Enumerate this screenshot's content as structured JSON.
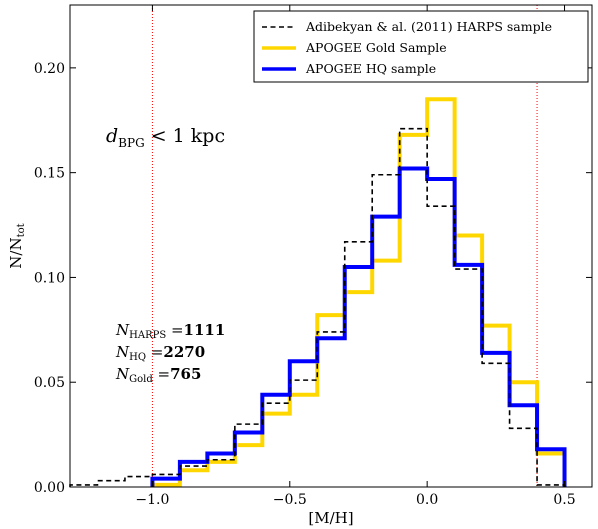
{
  "chart_data": {
    "type": "step",
    "xlabel": "[M/H]",
    "ylabel_main": "N/N",
    "ylabel_sub": "tot",
    "xlim": [
      -1.3,
      0.6
    ],
    "ylim": [
      0.0,
      0.23
    ],
    "grid": false,
    "legend_position": "top-right",
    "x_ticks": [
      {
        "value": -1.0,
        "label": "−1.0"
      },
      {
        "value": -0.5,
        "label": "−0.5"
      },
      {
        "value": 0.0,
        "label": "0.0"
      },
      {
        "value": 0.5,
        "label": "0.5"
      }
    ],
    "y_ticks": [
      {
        "value": 0.0,
        "label": "0.00"
      },
      {
        "value": 0.05,
        "label": "0.05"
      },
      {
        "value": 0.1,
        "label": "0.10"
      },
      {
        "value": 0.15,
        "label": "0.15"
      },
      {
        "value": 0.2,
        "label": "0.20"
      }
    ],
    "vlines": [
      -1.0,
      0.4
    ],
    "vline_color": "#ff0000",
    "series": [
      {
        "name": "Adibekyan & al. (2011) HARPS sample",
        "color": "#000000",
        "style": "dashed",
        "edges": [
          -1.3,
          -1.2,
          -1.1,
          -1.0,
          -0.9,
          -0.8,
          -0.7,
          -0.6,
          -0.5,
          -0.4,
          -0.3,
          -0.2,
          -0.1,
          0.0,
          0.1,
          0.2,
          0.3,
          0.4,
          0.5
        ],
        "values": [
          0.001,
          0.003,
          0.005,
          0.006,
          0.01,
          0.013,
          0.03,
          0.04,
          0.051,
          0.074,
          0.117,
          0.149,
          0.171,
          0.134,
          0.104,
          0.059,
          0.028,
          0.001
        ]
      },
      {
        "name": "APOGEE Gold Sample",
        "color": "#ffd700",
        "style": "solid",
        "edges": [
          -1.0,
          -0.9,
          -0.8,
          -0.7,
          -0.6,
          -0.5,
          -0.4,
          -0.3,
          -0.2,
          -0.1,
          0.0,
          0.1,
          0.2,
          0.3,
          0.4,
          0.5
        ],
        "values": [
          0.001,
          0.008,
          0.012,
          0.02,
          0.035,
          0.044,
          0.082,
          0.093,
          0.108,
          0.168,
          0.185,
          0.12,
          0.077,
          0.05,
          0.016
        ]
      },
      {
        "name": "APOGEE HQ sample",
        "color": "#0000ff",
        "style": "solid",
        "edges": [
          -1.0,
          -0.9,
          -0.8,
          -0.7,
          -0.6,
          -0.5,
          -0.4,
          -0.3,
          -0.2,
          -0.1,
          0.0,
          0.1,
          0.2,
          0.3,
          0.4,
          0.5
        ],
        "values": [
          0.004,
          0.012,
          0.016,
          0.026,
          0.044,
          0.06,
          0.071,
          0.105,
          0.129,
          0.152,
          0.147,
          0.106,
          0.064,
          0.039,
          0.018
        ]
      }
    ],
    "annotations": {
      "distance": {
        "symbol": "d",
        "sub": "BPG",
        "text": " < 1 kpc"
      },
      "counts": [
        {
          "symbol": "N",
          "sub": "HARPS",
          "eq": " =",
          "value": "1111"
        },
        {
          "symbol": "N",
          "sub": "HQ",
          "eq": " =",
          "value": "2270"
        },
        {
          "symbol": "N",
          "sub": "Gold",
          "eq": " =",
          "value": "765"
        }
      ]
    }
  }
}
